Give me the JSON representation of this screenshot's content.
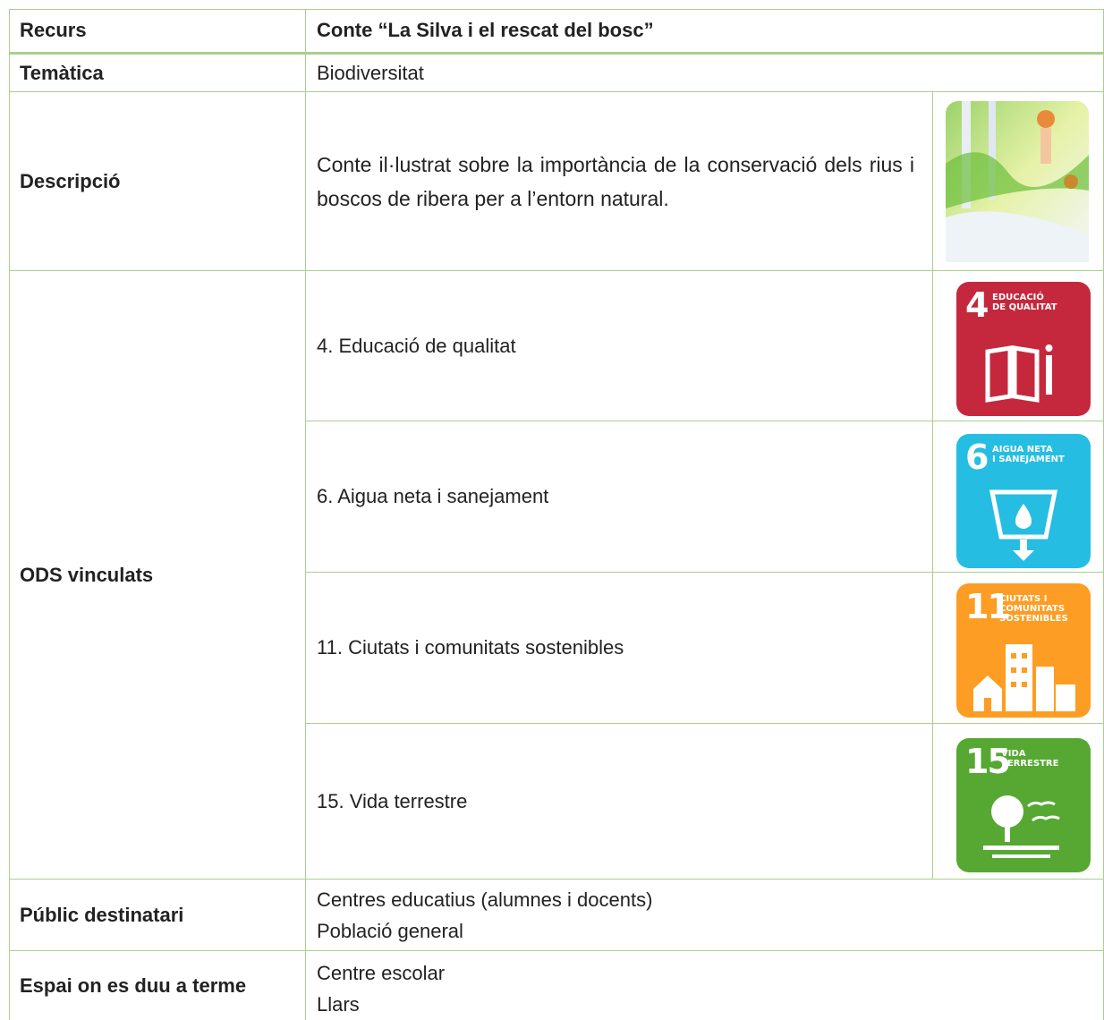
{
  "header": {
    "label": "Recurs",
    "value": "Conte “La Silva i el rescat del bosc”"
  },
  "theme": {
    "label": "Temàtica",
    "value": "Biodiversitat"
  },
  "description": {
    "label": "Descripció",
    "value": "Conte il·lustrat sobre la importància de la conservació dels rius i boscos de ribera per a l’entorn natural."
  },
  "ods": {
    "label": "ODS vinculats",
    "items": [
      {
        "text": "4. Educació de qualitat",
        "number": "4",
        "title": [
          "EDUCACIÓ",
          "DE QUALITAT"
        ]
      },
      {
        "text": "6. Aigua neta i sanejament",
        "number": "6",
        "title": [
          "AIGUA NETA",
          "I SANEJAMENT"
        ]
      },
      {
        "text": "11. Ciutats i comunitats sostenibles",
        "number": "11",
        "title": [
          "CIUTATS I COMUNITATS",
          "SOSTENIBLES"
        ]
      },
      {
        "text": "15. Vida terrestre",
        "number": "15",
        "title": [
          "VIDA",
          "TERRESTRE"
        ]
      }
    ]
  },
  "audience": {
    "label": "Públic destinatari",
    "lines": [
      "Centres educatius (alumnes i docents)",
      "Població general"
    ]
  },
  "venue": {
    "label": "Espai on es duu a terme",
    "lines": [
      "Centre escolar",
      "Llars"
    ]
  }
}
